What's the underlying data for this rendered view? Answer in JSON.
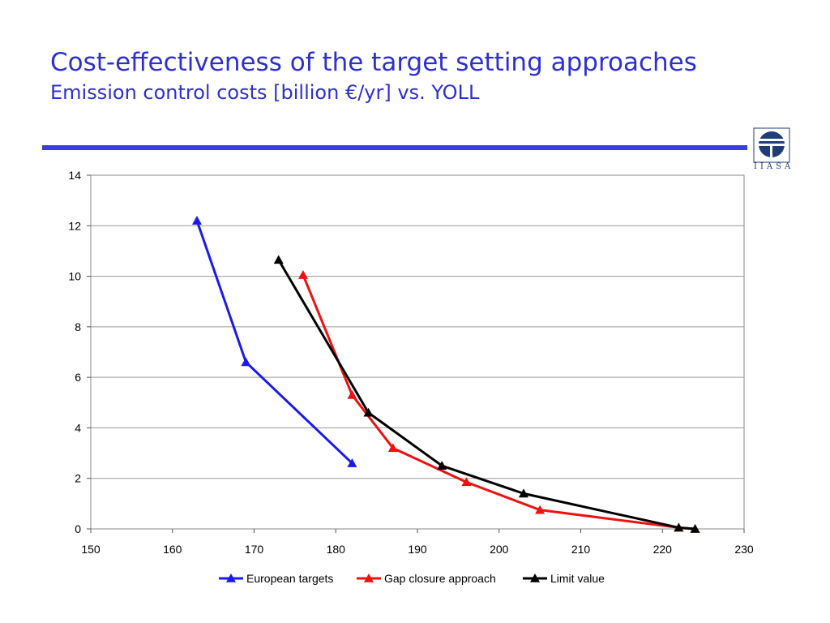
{
  "slide": {
    "title": "Cost-effectiveness of the target setting approaches",
    "subtitle": "Emission control costs [billion €/yr] vs. YOLL",
    "logo_text": "IIASA",
    "accent_color": "#3a3ee0",
    "title_color": "#2d2fd6"
  },
  "chart_data": {
    "type": "line",
    "title": "",
    "xlabel": "",
    "ylabel": "",
    "xlim": [
      150,
      230
    ],
    "ylim": [
      0,
      14
    ],
    "x_ticks": [
      150,
      160,
      170,
      180,
      190,
      200,
      210,
      220,
      230
    ],
    "y_ticks": [
      0,
      2,
      4,
      6,
      8,
      10,
      12,
      14
    ],
    "grid": "horizontal",
    "legend_position": "bottom",
    "marker": "triangle",
    "series": [
      {
        "name": "European targets",
        "color": "#1a1aee",
        "x": [
          163,
          169,
          182
        ],
        "y": [
          12.2,
          6.6,
          2.6
        ]
      },
      {
        "name": "Gap closure approach",
        "color": "#ee1111",
        "x": [
          176,
          182,
          187,
          196,
          205,
          222,
          224
        ],
        "y": [
          10.05,
          5.3,
          3.2,
          1.85,
          0.75,
          0.05,
          0.0
        ]
      },
      {
        "name": "Limit value",
        "color": "#000000",
        "x": [
          173,
          184,
          193,
          203,
          222,
          224
        ],
        "y": [
          10.65,
          4.6,
          2.5,
          1.4,
          0.05,
          0.0
        ]
      }
    ]
  }
}
